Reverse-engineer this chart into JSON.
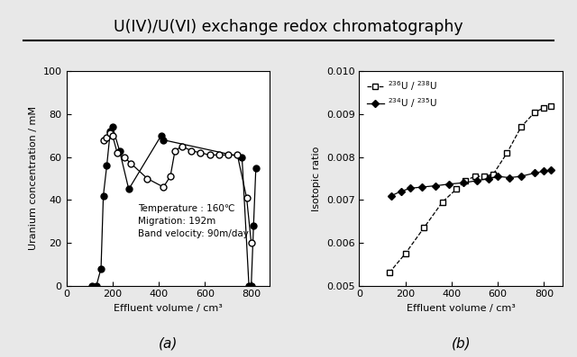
{
  "title": "U(IV)/U(VI) exchange redox chromatography",
  "subplot_a": {
    "label": "(a)",
    "xlabel": "Effluent volume / cm³",
    "ylabel": "Uranium concentration / mM",
    "xlim": [
      0,
      880
    ],
    "ylim": [
      0,
      100
    ],
    "xticks": [
      0,
      200,
      400,
      600,
      800
    ],
    "yticks": [
      0,
      20,
      40,
      60,
      80,
      100
    ],
    "annotation": "Temperature : 160℃\nMigration: 192m\nBand velocity: 90m/day",
    "filled_x": [
      110,
      130,
      150,
      160,
      175,
      190,
      200,
      230,
      270,
      410,
      420,
      760,
      790,
      800,
      810,
      820
    ],
    "filled_y": [
      0,
      0,
      8,
      42,
      56,
      72,
      74,
      63,
      45,
      70,
      68,
      60,
      0,
      0,
      28,
      55
    ],
    "open_x": [
      160,
      175,
      190,
      200,
      220,
      250,
      280,
      350,
      420,
      450,
      470,
      500,
      540,
      580,
      620,
      660,
      700,
      740,
      780,
      800
    ],
    "open_y": [
      68,
      69,
      71,
      70,
      62,
      60,
      57,
      50,
      46,
      51,
      63,
      65,
      63,
      62,
      61,
      61,
      61,
      61,
      41,
      20
    ]
  },
  "subplot_b": {
    "label": "(b)",
    "xlabel": "Effluent volume / cm³",
    "ylabel": "Isotopic ratio",
    "xlim": [
      0,
      880
    ],
    "ylim": [
      0.005,
      0.01
    ],
    "xticks": [
      0,
      200,
      400,
      600,
      800
    ],
    "yticks": [
      0.005,
      0.006,
      0.007,
      0.008,
      0.009,
      0.01
    ],
    "legend_sq": "$^{236}$U / $^{238}$U",
    "legend_di": "$^{234}$U / $^{235}$U",
    "squares_x": [
      130,
      200,
      280,
      360,
      420,
      460,
      500,
      540,
      580,
      640,
      700,
      760,
      800,
      830
    ],
    "squares_y": [
      0.0053,
      0.00575,
      0.00635,
      0.00695,
      0.00725,
      0.00745,
      0.00755,
      0.00755,
      0.0076,
      0.0081,
      0.0087,
      0.00905,
      0.00915,
      0.0092
    ],
    "diamonds_x": [
      140,
      180,
      220,
      270,
      330,
      390,
      450,
      510,
      560,
      600,
      650,
      700,
      760,
      800,
      830
    ],
    "diamonds_y": [
      0.0071,
      0.0072,
      0.00727,
      0.0073,
      0.00733,
      0.00737,
      0.0074,
      0.00745,
      0.0075,
      0.00755,
      0.00752,
      0.00755,
      0.00763,
      0.00767,
      0.0077
    ]
  },
  "bg_color": "#e8e8e8",
  "plot_bg": "#ffffff"
}
